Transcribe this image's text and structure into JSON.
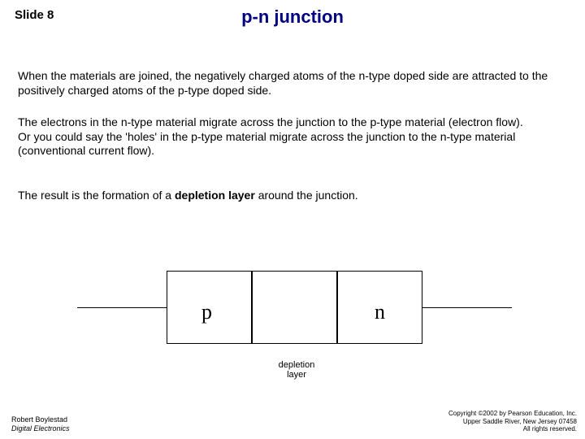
{
  "slideNumber": "Slide 8",
  "title": "p-n junction",
  "paragraph1": "When the materials are joined, the negatively charged atoms of the n-type doped side are attracted to the positively charged atoms of the p-type doped side.",
  "paragraph2": "The electrons in the n-type material migrate across the junction to the p-type material (electron flow).\nOr you could say the 'holes' in the p-type material migrate across the junction to the n-type material (conventional current flow).",
  "paragraph3_pre": "The result is the formation of a ",
  "paragraph3_bold": "depletion layer ",
  "paragraph3_post": "around the junction.",
  "diagram": {
    "p_label": "p",
    "n_label": "n",
    "depletion_label": "depletion layer",
    "border_color": "#000000",
    "background_color": "#ffffff"
  },
  "footerLeft": {
    "author": "Robert Boylestad",
    "book": "Digital Electronics"
  },
  "footerRight": {
    "line1": "Copyright ©2002 by Pearson Education, Inc.",
    "line2": "Upper Saddle River, New Jersey 07458",
    "line3": "All rights reserved."
  },
  "colors": {
    "title": "#000080",
    "text": "#000000",
    "background": "#ffffff"
  },
  "typography": {
    "title_fontsize": 22,
    "body_fontsize": 14,
    "footer_fontsize": 9
  }
}
